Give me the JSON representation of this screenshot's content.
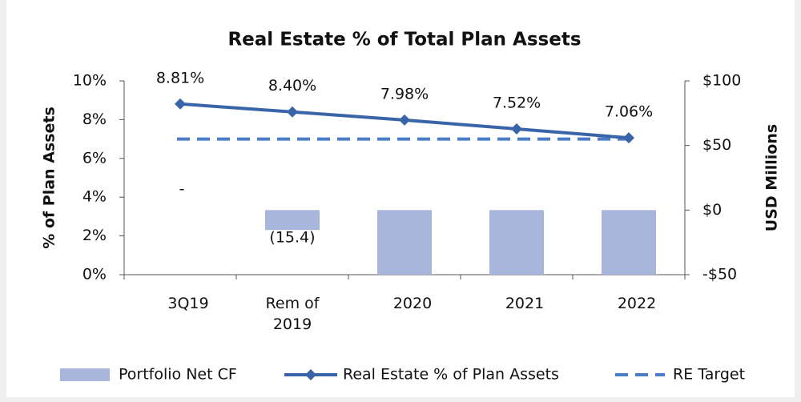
{
  "chart_data": {
    "type": "combo",
    "title": "Real Estate % of Total Plan Assets",
    "categories": [
      "3Q19",
      "Rem of 2019",
      "2020",
      "2021",
      "2022"
    ],
    "y_label": "% of Plan Assets",
    "y2_label": "USD Millions",
    "ylim": [
      0,
      10
    ],
    "yticks": [
      {
        "value": 0,
        "label": "0%"
      },
      {
        "value": 2,
        "label": "2%"
      },
      {
        "value": 4,
        "label": "4%"
      },
      {
        "value": 6,
        "label": "6%"
      },
      {
        "value": 8,
        "label": "8%"
      },
      {
        "value": 10,
        "label": "10%"
      }
    ],
    "y2lim": [
      -50,
      100
    ],
    "y2ticks": [
      {
        "value": -50,
        "label": "-$50"
      },
      {
        "value": 0,
        "label": "$0"
      },
      {
        "value": 50,
        "label": "$50"
      },
      {
        "value": 100,
        "label": "$100"
      }
    ],
    "legend": "bottom",
    "series": [
      {
        "name": "Portfolio Net CF",
        "type": "bar",
        "axis": "y2",
        "color": "#a7b6da",
        "values": [
          0,
          -15.4,
          -50,
          -50,
          -50
        ],
        "value_labels": [
          "-",
          "(15.4)",
          null,
          null,
          null
        ]
      },
      {
        "name": "Real Estate % of Plan Assets",
        "type": "line",
        "color": "#3a64a8",
        "values": [
          8.81,
          8.4,
          7.98,
          7.52,
          7.06
        ],
        "value_labels": [
          "8.81%",
          "8.40%",
          "7.98%",
          "7.52%",
          "7.06%"
        ]
      },
      {
        "name": "RE Target",
        "type": "dashed",
        "color": "#4a7dc6",
        "values": [
          7,
          7,
          7,
          7,
          7
        ]
      }
    ]
  }
}
